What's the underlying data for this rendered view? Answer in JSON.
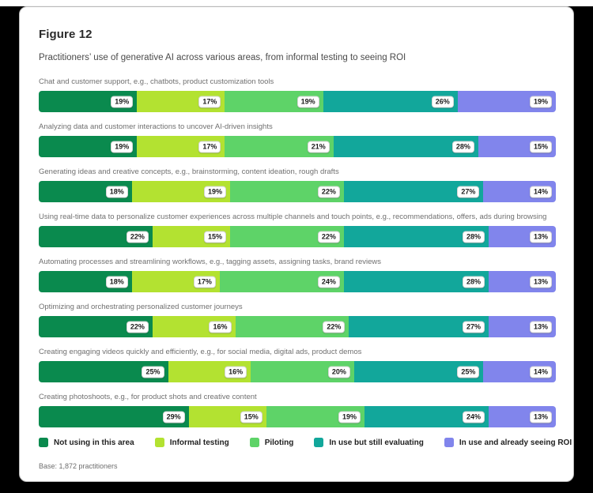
{
  "figure": {
    "label": "Figure 12",
    "subtitle": "Practitioners’ use of generative AI across various areas, from informal testing to seeing ROI",
    "base_note": "Base: 1,872 practitioners"
  },
  "chart_data": {
    "type": "bar",
    "orientation": "horizontal",
    "stacked": true,
    "value_format": "percent",
    "xlim": [
      0,
      100
    ],
    "grid": false,
    "legend_position": "bottom",
    "title": "Figure 12",
    "subtitle": "Practitioners’ use of generative AI across various areas, from informal testing to seeing ROI",
    "categories": [
      "Chat and customer support, e.g., chatbots, product customization tools",
      "Analyzing data and customer interactions to uncover AI-driven insights",
      "Generating ideas and creative concepts, e.g., brainstorming, content ideation, rough drafts",
      "Using real-time data to personalize customer experiences across multiple channels and touch points, e.g., recommendations, offers, ads during browsing",
      "Automating processes and streamlining workflows, e.g., tagging assets, assigning tasks, brand reviews",
      "Optimizing and orchestrating personalized customer journeys",
      "Creating engaging videos quickly and efficiently, e.g., for social media, digital ads, product demos",
      "Creating photoshoots, e.g., for product shots and creative content"
    ],
    "series": [
      {
        "name": "Not using in this area",
        "color": "#0a8a4e",
        "values": [
          19,
          19,
          18,
          22,
          18,
          22,
          25,
          29
        ]
      },
      {
        "name": "Informal testing",
        "color": "#b3e231",
        "values": [
          17,
          17,
          19,
          15,
          17,
          16,
          16,
          15
        ]
      },
      {
        "name": "Piloting",
        "color": "#5ed368",
        "values": [
          19,
          21,
          22,
          22,
          24,
          22,
          20,
          19
        ]
      },
      {
        "name": "In use but still evaluating",
        "color": "#12a79b",
        "values": [
          26,
          28,
          27,
          28,
          28,
          27,
          25,
          24
        ]
      },
      {
        "name": "In use and already seeing ROI",
        "color": "#8185ec",
        "values": [
          19,
          15,
          14,
          13,
          13,
          13,
          14,
          13
        ]
      }
    ]
  }
}
